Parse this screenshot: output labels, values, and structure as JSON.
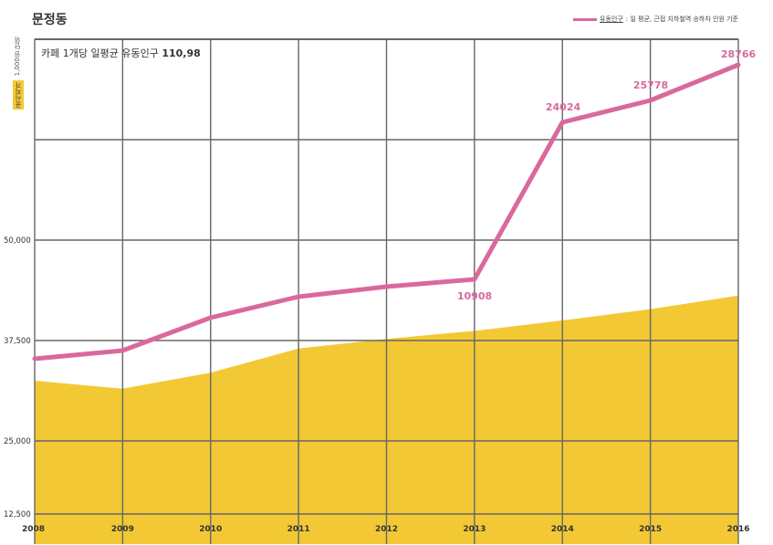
{
  "title": "문정동",
  "legend": {
    "series_name": "유동인구",
    "note": ": 일 평균, 근접 지하철역 승하차 인원 기준"
  },
  "axis_unit": "1,000원 단위",
  "axis_badge": "공시지가",
  "annotation": {
    "label": "카페 1개당 일평균 유동인구",
    "value": "110,98"
  },
  "colors": {
    "line": "#d9699c",
    "area": "#f2c935",
    "grid": "#666666"
  },
  "chart_data": {
    "type": "line",
    "title": "문정동",
    "x": [
      "2008",
      "2009",
      "2010",
      "2011",
      "2012",
      "2013",
      "2014",
      "2015",
      "2016"
    ],
    "y_ticks": [
      "12,500",
      "25,000",
      "37,500",
      "50,000"
    ],
    "series": [
      {
        "name": "유동인구",
        "type": "line",
        "values": [
          null,
          null,
          null,
          null,
          null,
          10908,
          24024,
          25778,
          28766
        ],
        "labels": [
          "",
          "",
          "",
          "",
          "",
          "10908",
          "24024",
          "25778",
          "28766"
        ]
      },
      {
        "name": "공시지가",
        "type": "area",
        "values": [
          32500,
          31500,
          33500,
          36500,
          37700,
          38700,
          40000,
          41400,
          43100
        ]
      }
    ],
    "ylim": [
      10000,
      62500
    ],
    "grid": true
  }
}
